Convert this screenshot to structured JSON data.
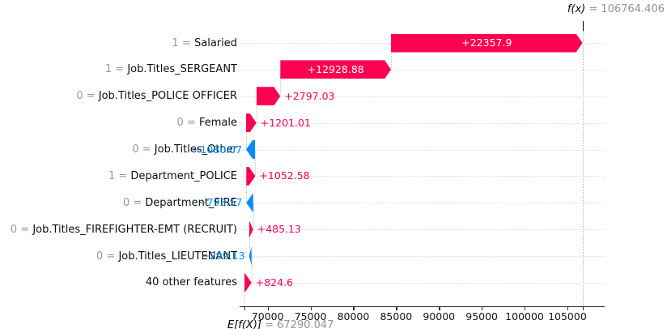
{
  "annotations": {
    "fx_label": "f(x)",
    "fx_value_text": " = 106764.406",
    "base_label": "E[f(X)]",
    "base_value_text": " = 67290.047"
  },
  "chart_data": {
    "type": "waterfall",
    "style": "shap-waterfall",
    "fx": 106764.406,
    "base": 67290.047,
    "xticks": [
      70000,
      75000,
      80000,
      85000,
      90000,
      95000,
      100000,
      105000
    ],
    "xtick_labels": [
      "70000",
      "75000",
      "80000",
      "85000",
      "90000",
      "95000",
      "100000",
      "105000"
    ],
    "colors": {
      "positive": "#ff0051",
      "negative": "#008bfb"
    },
    "legend_position": "none",
    "grid": "dotted-row-lines",
    "features": [
      {
        "prefix": "1 = ",
        "name": "Salaried",
        "value": 22357.9,
        "display": "+22357.9",
        "placement": "inside"
      },
      {
        "prefix": "1 = ",
        "name": "Job.Titles_SERGEANT",
        "value": 12928.88,
        "display": "+12928.88",
        "placement": "inside"
      },
      {
        "prefix": "0 = ",
        "name": "Job.Titles_POLICE OFFICER",
        "value": 2797.03,
        "display": "+2797.03",
        "placement": "outside"
      },
      {
        "prefix": "0 = ",
        "name": "Female",
        "value": 1201.01,
        "display": "+1201.01",
        "placement": "outside"
      },
      {
        "prefix": "0 = ",
        "name": "Job.Titles_Other",
        "value": -1080.07,
        "display": "−1080.07",
        "placement": "outside"
      },
      {
        "prefix": "1 = ",
        "name": "Department_POLICE",
        "value": 1052.58,
        "display": "+1052.58",
        "placement": "outside"
      },
      {
        "prefix": "0 = ",
        "name": "Department_FIRE",
        "value": -793.57,
        "display": "−793.57",
        "placement": "outside"
      },
      {
        "prefix": "0 = ",
        "name": "Job.Titles_FIREFIGHTER-EMT (RECRUIT)",
        "value": 485.13,
        "display": "+485.13",
        "placement": "outside"
      },
      {
        "prefix": "0 = ",
        "name": "Job.Titles_LIEUTENANT",
        "value": -299.13,
        "display": "−299.13",
        "placement": "outside"
      },
      {
        "prefix": "",
        "name": "40 other features",
        "value": 824.6,
        "display": "+824.6",
        "placement": "outside"
      }
    ]
  }
}
